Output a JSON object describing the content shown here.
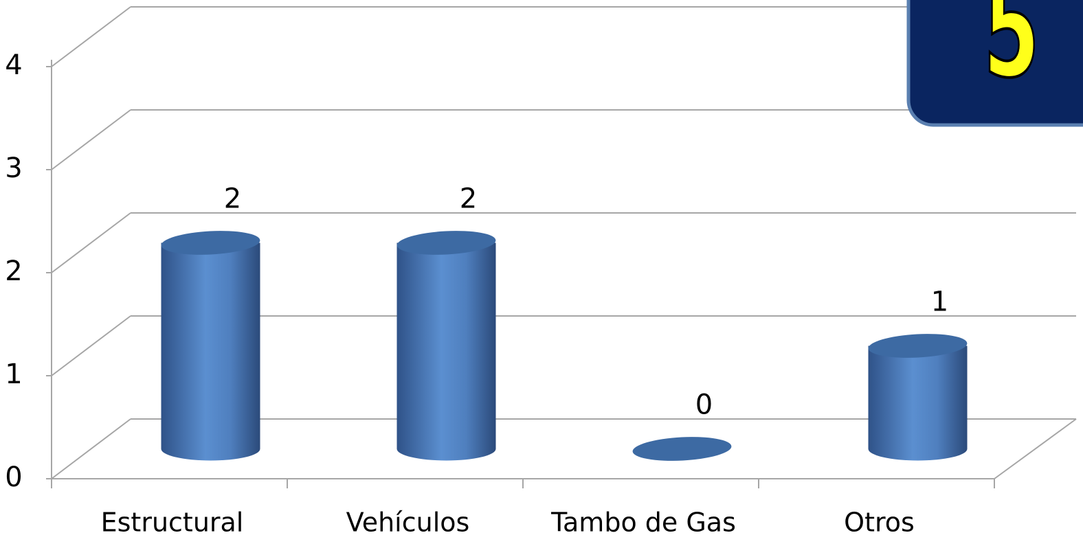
{
  "chart_data": {
    "type": "bar3d",
    "categories": [
      "Estructural",
      "Vehículos",
      "Tambo de Gas",
      "Otros"
    ],
    "values": [
      2,
      2,
      0,
      1
    ],
    "color": "#4f81bd",
    "ylim": [
      0,
      4
    ],
    "yticks": [
      0,
      1,
      2,
      3,
      4
    ],
    "grid": true,
    "annotations": [
      "5"
    ]
  }
}
